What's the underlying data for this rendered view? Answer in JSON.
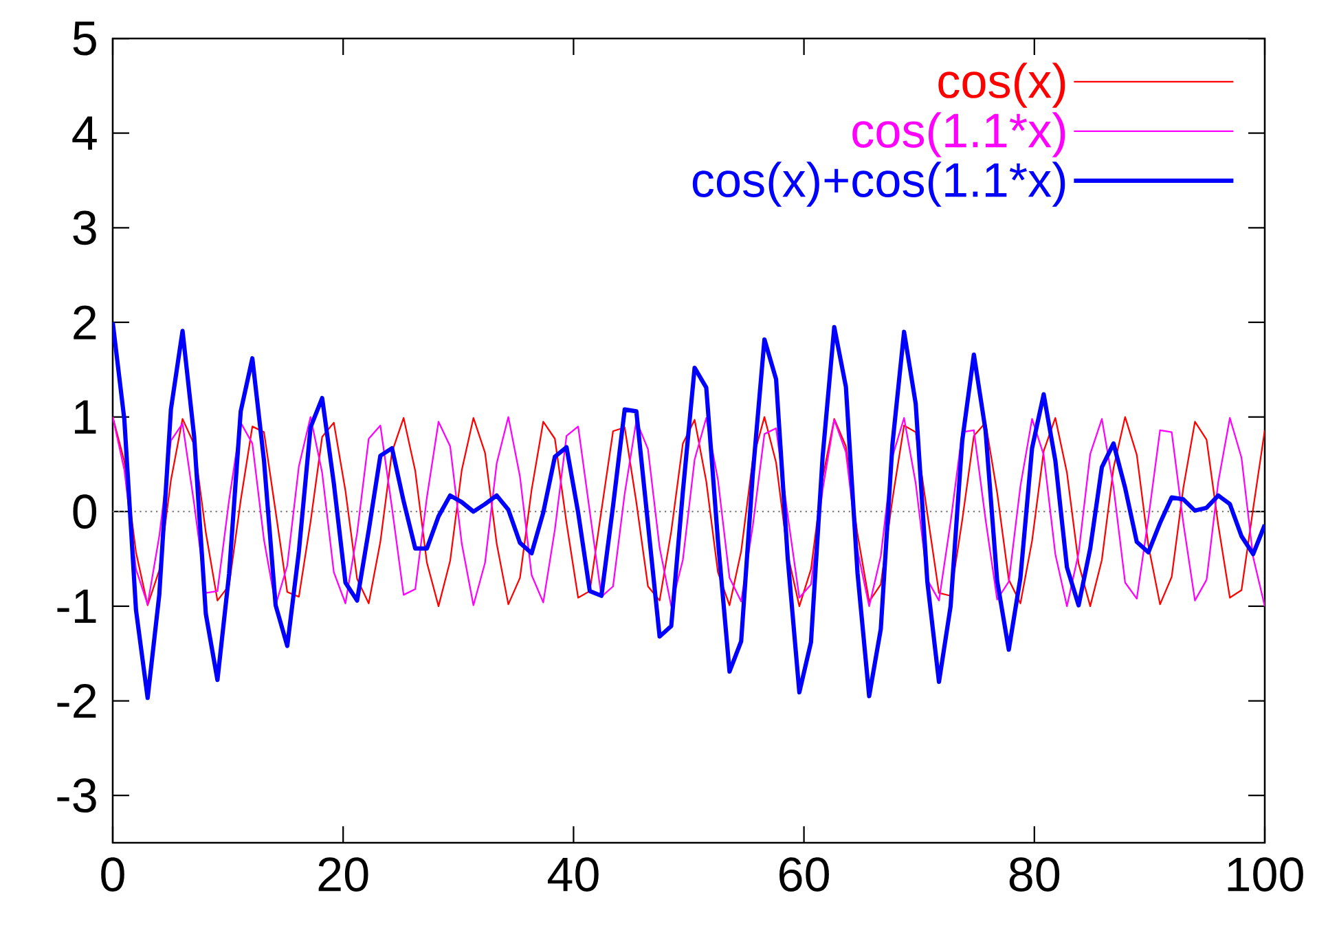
{
  "chart_data": {
    "type": "line",
    "x": [
      0,
      1.01,
      2.02,
      3.03,
      4.04,
      5.05,
      6.06,
      7.07,
      8.08,
      9.09,
      10.1,
      11.11,
      12.12,
      13.13,
      14.14,
      15.15,
      16.16,
      17.17,
      18.18,
      19.19,
      20.2,
      21.21,
      22.22,
      23.23,
      24.24,
      25.25,
      26.26,
      27.27,
      28.28,
      29.29,
      30.3,
      31.31,
      32.32,
      33.33,
      34.34,
      35.35,
      36.36,
      37.37,
      38.38,
      39.39,
      40.4,
      41.41,
      42.42,
      43.43,
      44.44,
      45.45,
      46.46,
      47.47,
      48.48,
      49.49,
      50.51,
      51.52,
      52.53,
      53.54,
      54.55,
      55.56,
      56.57,
      57.58,
      58.59,
      59.6,
      60.61,
      61.62,
      62.63,
      63.64,
      64.65,
      65.66,
      66.67,
      67.68,
      68.69,
      69.7,
      70.71,
      71.72,
      72.73,
      73.74,
      74.75,
      75.76,
      76.77,
      77.78,
      78.79,
      79.8,
      80.81,
      81.82,
      82.83,
      83.84,
      84.85,
      85.86,
      86.87,
      87.88,
      88.89,
      89.9,
      90.91,
      91.92,
      92.93,
      93.94,
      94.95,
      95.96,
      96.97,
      97.98,
      98.99,
      100
    ],
    "series": [
      {
        "name": "cos(x)",
        "color": "#ff0000",
        "values": [
          1.0,
          0.53,
          -0.43,
          -0.99,
          -0.62,
          0.33,
          0.98,
          0.71,
          -0.22,
          -0.94,
          -0.78,
          0.12,
          0.9,
          0.84,
          0.0,
          -0.85,
          -0.9,
          -0.11,
          0.79,
          0.94,
          0.22,
          -0.71,
          -0.97,
          -0.32,
          0.63,
          0.99,
          0.43,
          -0.54,
          -1.0,
          -0.52,
          0.44,
          0.99,
          0.62,
          -0.34,
          -0.98,
          -0.7,
          0.23,
          0.95,
          0.77,
          -0.12,
          -0.91,
          -0.84,
          0.01,
          0.85,
          0.89,
          0.1,
          -0.79,
          -0.94,
          -0.21,
          0.72,
          0.97,
          0.32,
          -0.64,
          -0.99,
          -0.42,
          0.55,
          1.0,
          0.52,
          -0.45,
          -1.0,
          -0.61,
          0.35,
          0.98,
          0.69,
          -0.24,
          -0.95,
          -0.77,
          0.13,
          0.91,
          0.84,
          -0.02,
          -0.86,
          -0.89,
          -0.09,
          0.8,
          0.94,
          0.2,
          -0.72,
          -0.97,
          -0.31,
          0.64,
          0.99,
          0.41,
          -0.55,
          -1.0,
          -0.51,
          0.46,
          1.0,
          0.6,
          -0.36,
          -0.98,
          -0.69,
          0.25,
          0.95,
          0.76,
          -0.14,
          -0.91,
          -0.83,
          0.03,
          0.86
        ]
      },
      {
        "name": "cos(1.1*x)",
        "color": "#ff00ff",
        "values": [
          1.0,
          0.44,
          -0.61,
          -0.98,
          -0.26,
          0.75,
          0.93,
          0.08,
          -0.86,
          -0.84,
          0.12,
          0.94,
          0.72,
          -0.3,
          -0.99,
          -0.57,
          0.48,
          1.0,
          0.41,
          -0.64,
          -0.97,
          -0.23,
          0.77,
          0.91,
          0.04,
          -0.88,
          -0.82,
          0.15,
          0.95,
          0.69,
          -0.34,
          -0.99,
          -0.54,
          0.51,
          1.0,
          0.37,
          -0.67,
          -0.96,
          -0.19,
          0.8,
          0.9,
          0.0,
          -0.9,
          -0.79,
          0.19,
          0.96,
          0.66,
          -0.38,
          -1.0,
          -0.51,
          0.55,
          0.99,
          0.34,
          -0.7,
          -0.95,
          -0.15,
          0.82,
          0.88,
          -0.04,
          -0.91,
          -0.77,
          0.23,
          0.97,
          0.63,
          -0.41,
          -1.0,
          -0.47,
          0.58,
          0.99,
          0.3,
          -0.72,
          -0.94,
          -0.11,
          0.84,
          0.86,
          -0.08,
          -0.93,
          -0.74,
          0.27,
          0.98,
          0.6,
          -0.45,
          -1.0,
          -0.44,
          0.61,
          0.98,
          0.26,
          -0.75,
          -0.92,
          -0.07,
          0.86,
          0.84,
          -0.12,
          -0.94,
          -0.72,
          0.31,
          0.99,
          0.57,
          -0.48,
          -1.0
        ]
      },
      {
        "name": "cos(x)+cos(1.1*x)",
        "color": "#0000ff",
        "values": [
          2.0,
          0.97,
          -1.04,
          -1.97,
          -0.88,
          1.08,
          1.91,
          0.79,
          -1.08,
          -1.78,
          -0.66,
          1.06,
          1.62,
          0.54,
          -0.99,
          -1.42,
          -0.42,
          0.89,
          1.2,
          0.3,
          -0.75,
          -0.94,
          -0.2,
          0.59,
          0.67,
          0.11,
          -0.39,
          -0.39,
          -0.05,
          0.17,
          0.1,
          0.0,
          0.08,
          0.17,
          0.02,
          -0.33,
          -0.44,
          -0.01,
          0.58,
          0.68,
          -0.01,
          -0.84,
          -0.89,
          0.06,
          1.08,
          1.06,
          -0.13,
          -1.32,
          -1.21,
          0.21,
          1.52,
          1.31,
          -0.3,
          -1.69,
          -1.37,
          0.4,
          1.82,
          1.4,
          -0.49,
          -1.91,
          -1.38,
          0.58,
          1.95,
          1.32,
          -0.65,
          -1.95,
          -1.24,
          0.71,
          1.9,
          1.14,
          -0.74,
          -1.8,
          -1.0,
          0.75,
          1.66,
          0.86,
          -0.73,
          -1.46,
          -0.7,
          0.67,
          1.24,
          0.54,
          -0.59,
          -0.99,
          -0.39,
          0.47,
          0.72,
          0.25,
          -0.32,
          -0.43,
          -0.12,
          0.15,
          0.13,
          0.01,
          0.04,
          0.17,
          0.08,
          -0.26,
          -0.45,
          -0.14
        ]
      }
    ],
    "xlim": [
      0,
      100
    ],
    "xticks": [
      0,
      20,
      40,
      60,
      80,
      100
    ],
    "ylim": [
      -3.5,
      5
    ],
    "yticks": [
      -3,
      -2,
      -1,
      0,
      1,
      2,
      3,
      4,
      5
    ],
    "ref_lines": [
      {
        "axis": "y",
        "value": 0,
        "color": "#808080",
        "line_style": "dotted"
      }
    ],
    "legend": "top right",
    "grid": false
  }
}
